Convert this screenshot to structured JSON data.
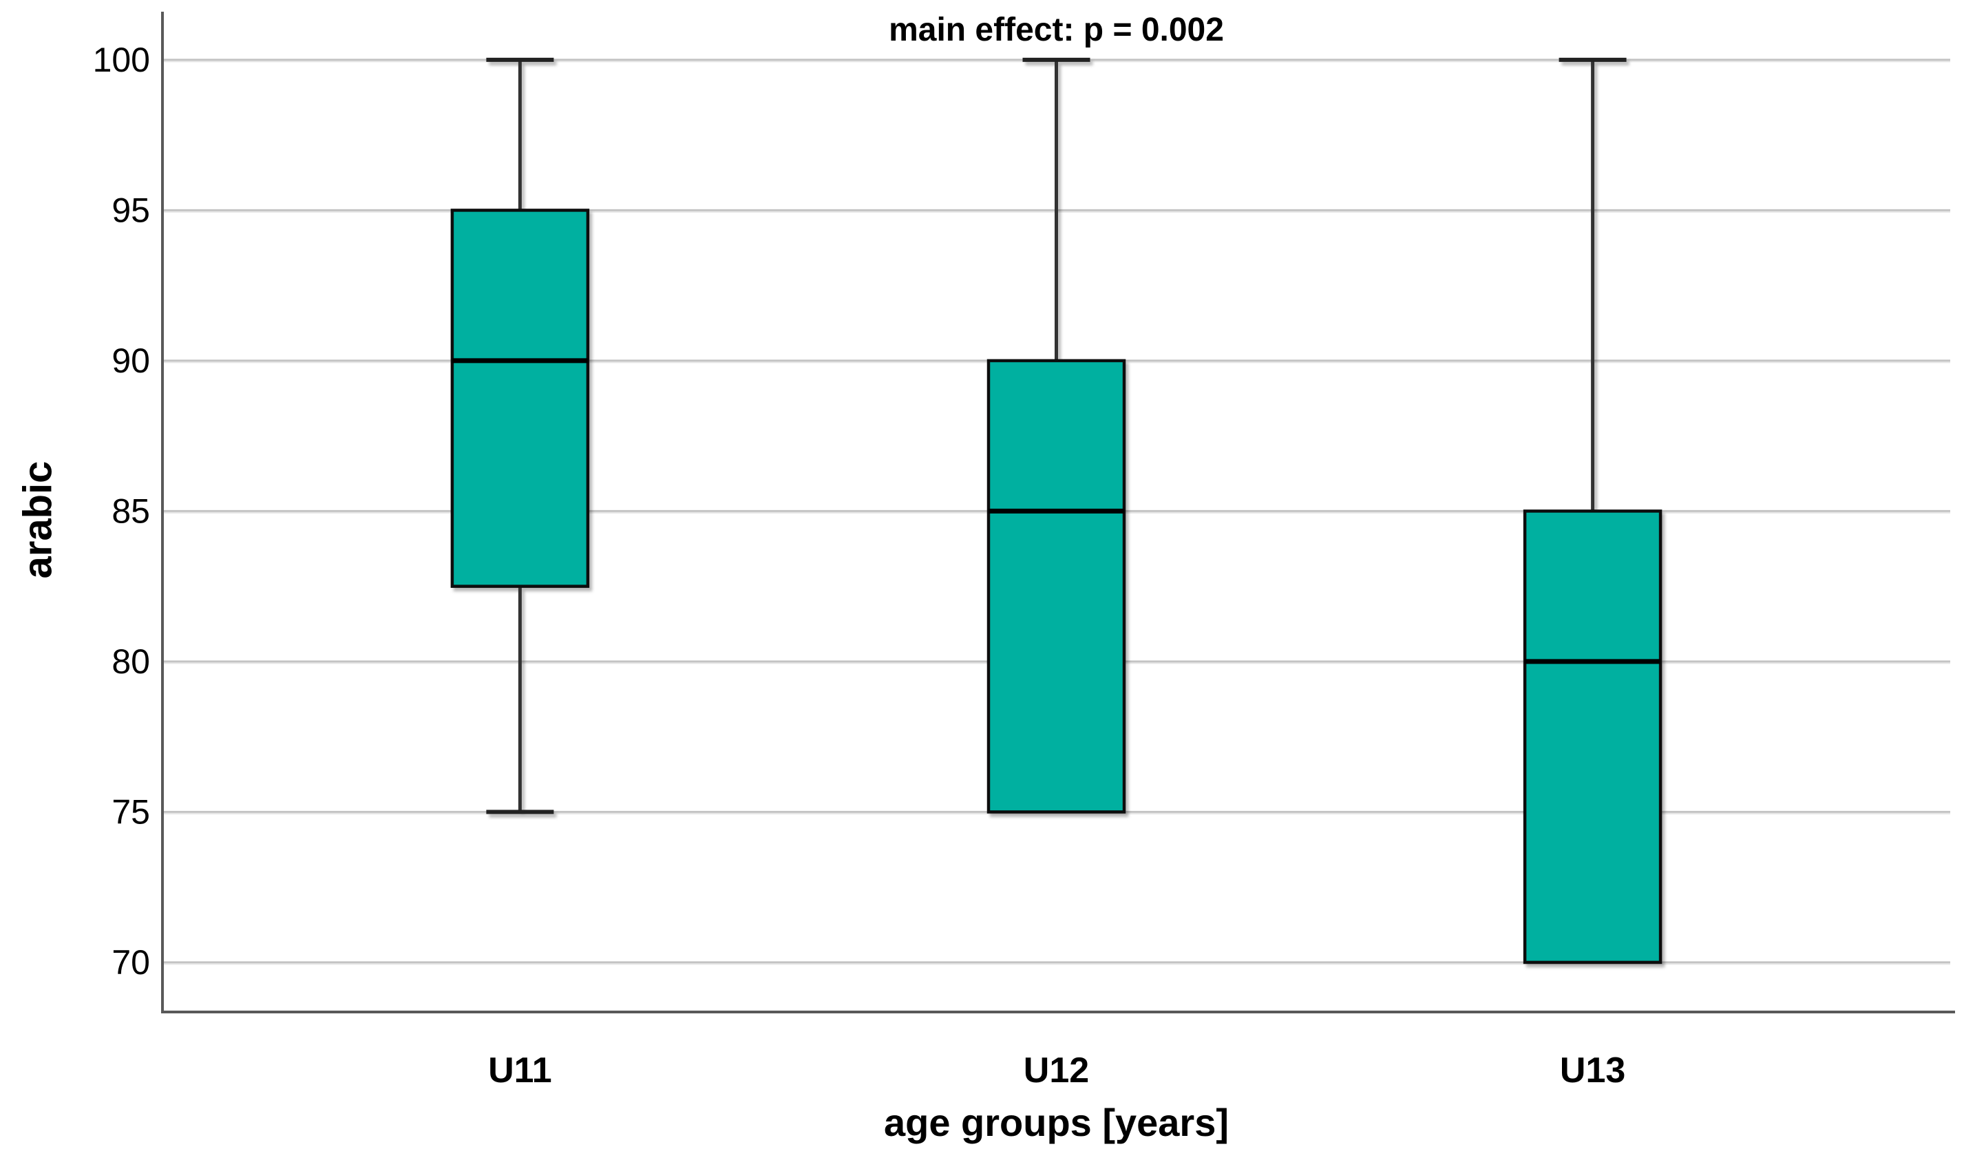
{
  "chart_data": {
    "type": "box",
    "title": "main effect: p = 0.002",
    "xlabel": "age groups [years]",
    "ylabel": "arabic",
    "categories": [
      "U11",
      "U12",
      "U13"
    ],
    "y_ticks": [
      70,
      75,
      80,
      85,
      90,
      95,
      100
    ],
    "ylim": [
      68.35,
      101.6
    ],
    "grid": "horizontal",
    "legend": "none",
    "series": [
      {
        "category": "U11",
        "whisker_low": 75,
        "q1": 82.5,
        "median": 90,
        "q3": 95,
        "whisker_high": 100
      },
      {
        "category": "U12",
        "whisker_low": 75,
        "q1": 75,
        "median": 85,
        "q3": 90,
        "whisker_high": 100
      },
      {
        "category": "U13",
        "whisker_low": 70,
        "q1": 70,
        "median": 80,
        "q3": 85,
        "whisker_high": 100
      }
    ],
    "colors": {
      "box_fill": "#00b0a0",
      "box_border": "#111111",
      "median": "#000000",
      "whisker": "#333333",
      "whisker_cap": "#222222",
      "gridline": "#c3c3c3",
      "gridline_light": "#e6e6e6",
      "axis": "#595959",
      "text": "#000000",
      "background": "#ffffff"
    }
  }
}
